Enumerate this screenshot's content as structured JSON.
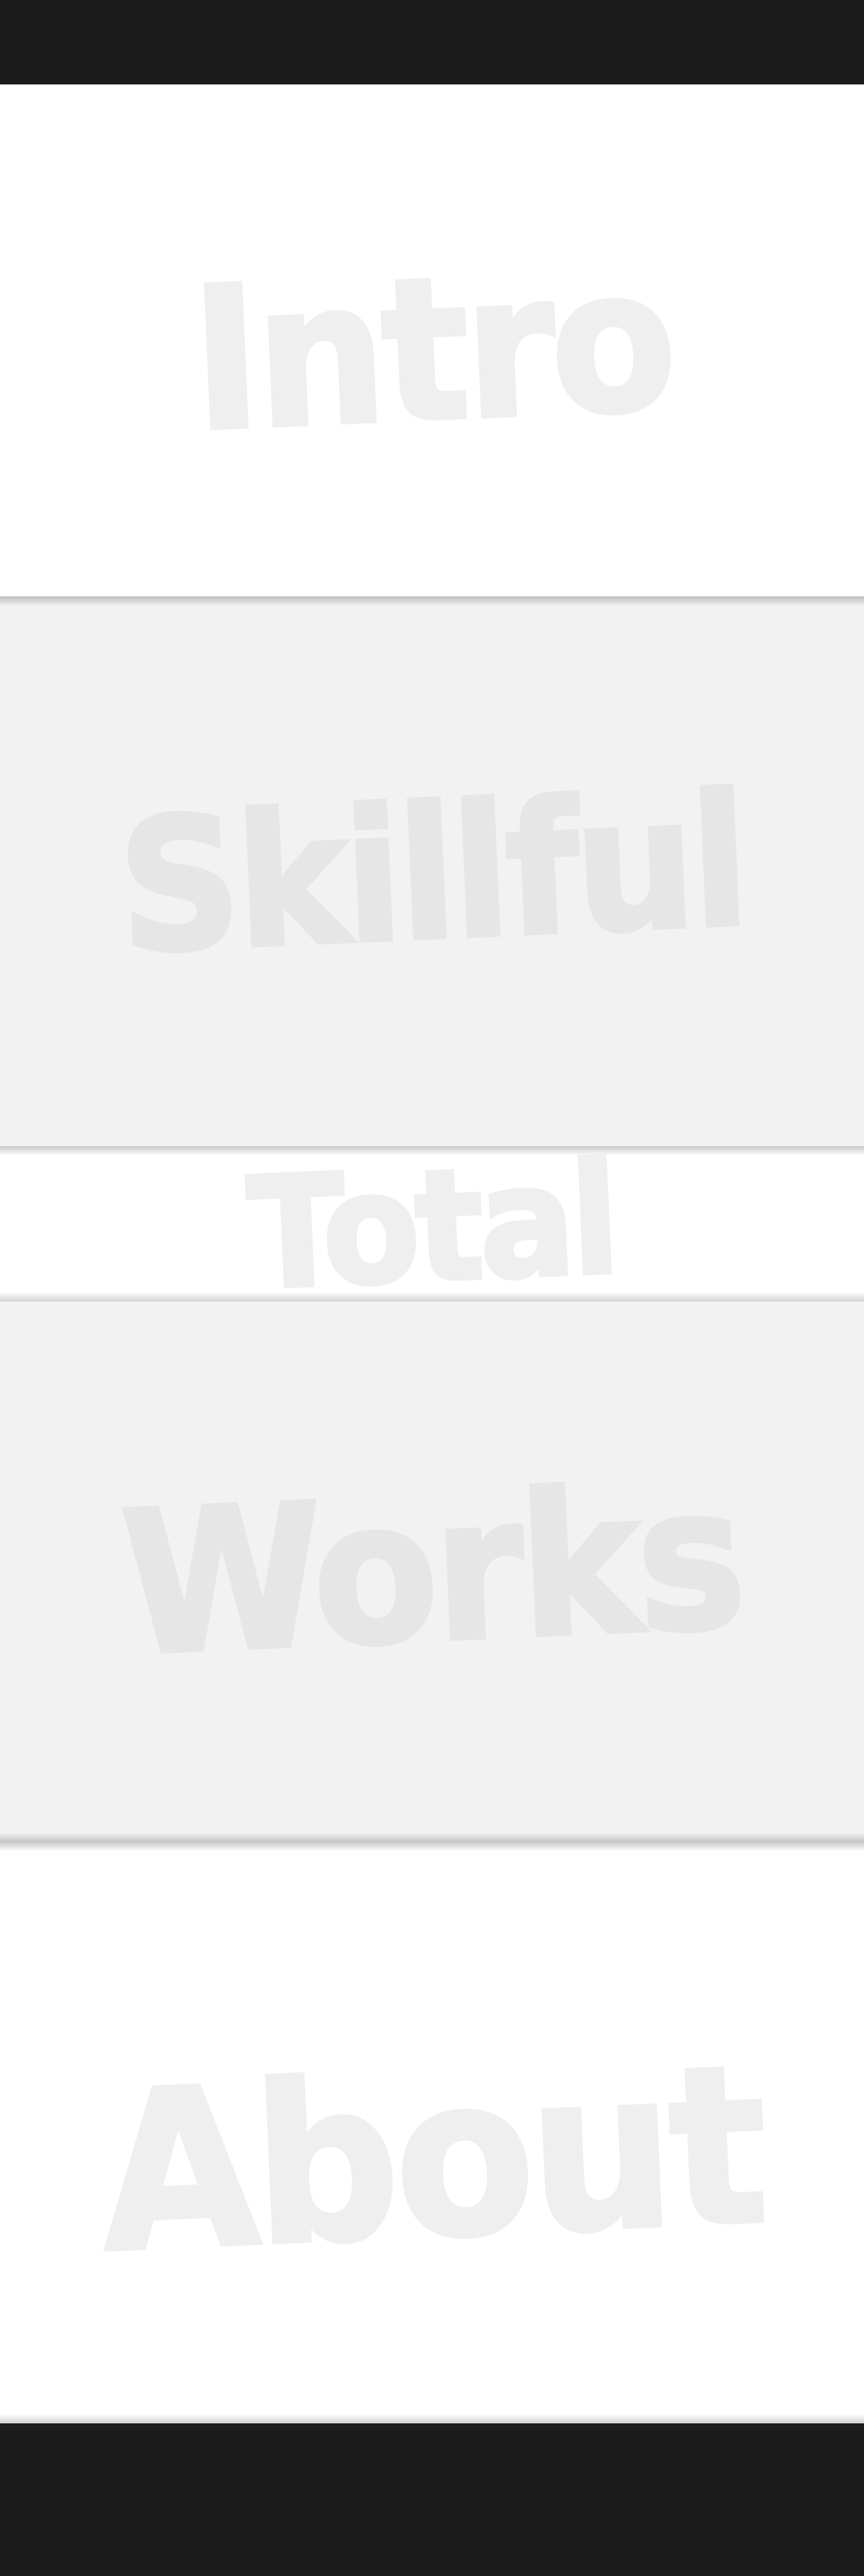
{
  "sections": [
    {
      "id": "intro",
      "title": "Intro"
    },
    {
      "id": "skillful",
      "title": "Skillful"
    },
    {
      "id": "total",
      "title": "Total"
    },
    {
      "id": "works",
      "title": "Works"
    },
    {
      "id": "about",
      "title": "About"
    }
  ],
  "colors": {
    "bar": "#1b1b1b",
    "section_white": "#ffffff",
    "section_grey": "#f2f2f2",
    "heading_text": "#ececec"
  }
}
